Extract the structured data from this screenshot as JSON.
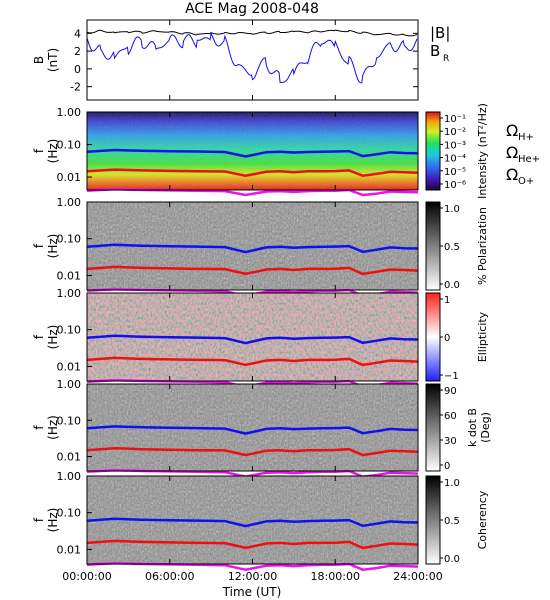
{
  "title": "ACE Mag 2008-048",
  "time_axis": {
    "label": "Time (UT)",
    "ticks": [
      "00:00:00",
      "06:00:00",
      "12:00:00",
      "18:00:00",
      "24:00:00"
    ],
    "range_hours": [
      0,
      24
    ]
  },
  "chart_data": [
    {
      "type": "line",
      "panel": "magnetic-field",
      "ylabel": [
        "B",
        "(nT)"
      ],
      "yticks": [
        "4",
        "2",
        "0",
        "-2"
      ],
      "ylim": [
        -3.5,
        5.5
      ],
      "series": [
        {
          "name": "|B|",
          "color": "#000000",
          "x": [
            0,
            1,
            2,
            3,
            4,
            5,
            6,
            7,
            8,
            9,
            10,
            11,
            12,
            13,
            14,
            15,
            16,
            17,
            18,
            19,
            20,
            21,
            22,
            23,
            24
          ],
          "values": [
            4.1,
            4.3,
            4.1,
            4.2,
            4.1,
            4.2,
            4.1,
            4.0,
            3.9,
            4.0,
            4.0,
            4.1,
            4.0,
            4.1,
            4.1,
            4.2,
            4.1,
            4.2,
            4.3,
            4.2,
            4.1,
            3.9,
            4.0,
            3.8,
            3.8
          ]
        },
        {
          "name": "B_R",
          "color": "#1010ee",
          "x": [
            0,
            1,
            2,
            3,
            4,
            5,
            6,
            7,
            8,
            9,
            10,
            11,
            12,
            13,
            14,
            15,
            16,
            17,
            18,
            19,
            20,
            21,
            22,
            23,
            24
          ],
          "values": [
            3.5,
            2.0,
            1.5,
            2.5,
            3.0,
            2.0,
            3.0,
            3.0,
            3.2,
            3.5,
            3.0,
            0.5,
            -0.5,
            1.0,
            -1.5,
            -0.5,
            1.0,
            3.0,
            2.5,
            0.5,
            -1.0,
            1.5,
            3.0,
            2.5,
            3.0
          ]
        }
      ],
      "legend": [
        {
          "label": "|B|",
          "color": "#000000"
        },
        {
          "label": "B",
          "sub": "R",
          "color": "#1010ee"
        }
      ]
    },
    {
      "type": "heatmap",
      "panel": "intensity",
      "ylabel": [
        "f",
        "(Hz)"
      ],
      "yticks": [
        "1.00",
        "0.10",
        "0.01"
      ],
      "ylim": [
        0.004,
        1.0
      ],
      "yscale": "log",
      "colorbar": {
        "label": "Intensity (nT²/Hz)",
        "ticks": [
          "10⁻¹",
          "10⁻²",
          "10⁻³",
          "10⁻⁴",
          "10⁻⁵",
          "10⁻⁶"
        ]
      }
    },
    {
      "type": "heatmap",
      "panel": "polarization",
      "ylabel": [
        "f",
        "(Hz)"
      ],
      "yticks": [
        "1.00",
        "0.10",
        "0.01"
      ],
      "ylim": [
        0.004,
        1.0
      ],
      "yscale": "log",
      "colorbar": {
        "label": "% Polarization",
        "ticks": [
          "1.0",
          "0.5",
          "0.0"
        ]
      }
    },
    {
      "type": "heatmap",
      "panel": "ellipticity",
      "ylabel": [
        "f",
        "(Hz)"
      ],
      "yticks": [
        "1.00",
        "0.10",
        "0.01"
      ],
      "ylim": [
        0.004,
        1.0
      ],
      "yscale": "log",
      "colorbar": {
        "label": "Ellipticity",
        "ticks": [
          "1",
          "0",
          "−1"
        ]
      }
    },
    {
      "type": "heatmap",
      "panel": "k-dot-b",
      "ylabel": [
        "f",
        "(Hz)"
      ],
      "yticks": [
        "1.00",
        "0.10",
        "0.01"
      ],
      "ylim": [
        0.004,
        1.0
      ],
      "yscale": "log",
      "colorbar": {
        "label": "k dot B",
        "label2": "(Deg)",
        "ticks": [
          "90",
          "60",
          "30",
          "0"
        ]
      }
    },
    {
      "type": "heatmap",
      "panel": "coherency",
      "ylabel": [
        "f",
        "(Hz)"
      ],
      "yticks": [
        "1.00",
        "0.10",
        "0.01"
      ],
      "ylim": [
        0.004,
        1.0
      ],
      "yscale": "log",
      "colorbar": {
        "label": "Coherency",
        "ticks": [
          "1.0",
          "0.5",
          "0.0"
        ]
      }
    }
  ],
  "cyclotron_lines": {
    "x": [
      0,
      2,
      4,
      6,
      8,
      10,
      11.5,
      13,
      14,
      15,
      16,
      17,
      18,
      19,
      20,
      21,
      22,
      23,
      24
    ],
    "H+": [
      0.06,
      0.068,
      0.064,
      0.062,
      0.061,
      0.059,
      0.043,
      0.058,
      0.06,
      0.057,
      0.059,
      0.06,
      0.061,
      0.063,
      0.044,
      0.05,
      0.058,
      0.055,
      0.054
    ],
    "He+": [
      0.015,
      0.017,
      0.016,
      0.0155,
      0.015,
      0.0148,
      0.011,
      0.0145,
      0.015,
      0.014,
      0.015,
      0.015,
      0.0152,
      0.016,
      0.011,
      0.0125,
      0.0145,
      0.014,
      0.0135
    ],
    "O+": [
      0.0038,
      0.0042,
      0.004,
      0.0039,
      0.0038,
      0.0037,
      0.0028,
      0.0036,
      0.0037,
      0.0035,
      0.0037,
      0.0038,
      0.0038,
      0.004,
      0.0028,
      0.0031,
      0.0036,
      0.0035,
      0.0034
    ]
  },
  "ion_legend": [
    {
      "symbol": "Ω",
      "sub": "H+",
      "color": "#1010ee"
    },
    {
      "symbol": "Ω",
      "sub": "He+",
      "color": "#ee1010"
    },
    {
      "symbol": "Ω",
      "sub": "O+",
      "color": "#ee10ee"
    }
  ]
}
